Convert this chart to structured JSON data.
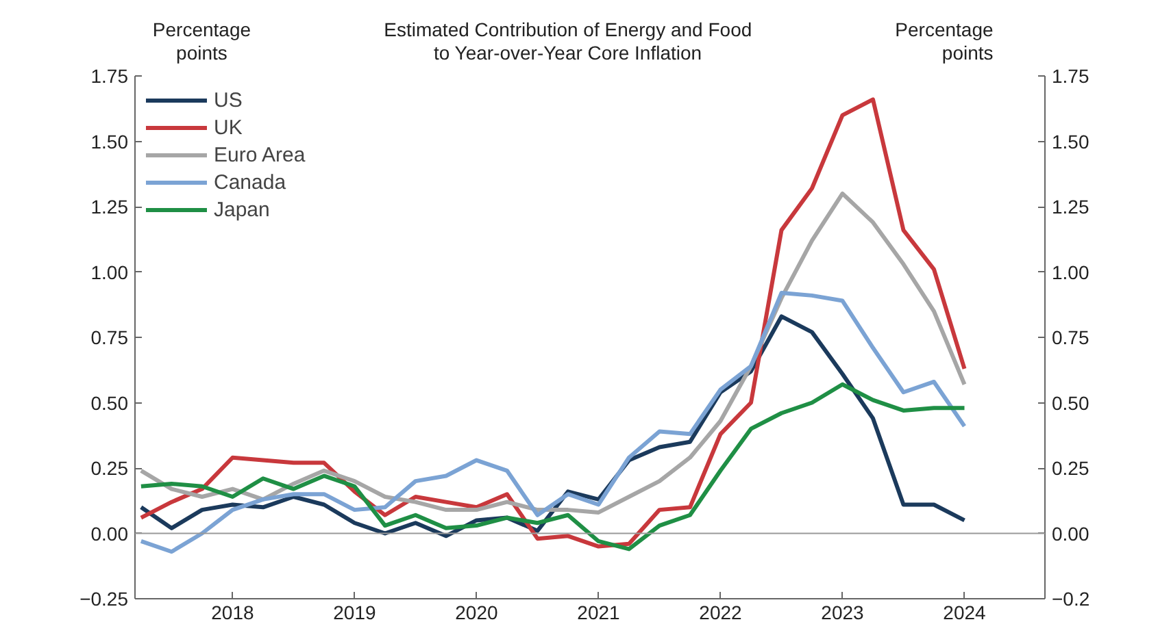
{
  "chart_data": {
    "type": "line",
    "title": "Estimated Contribution of Energy and Food\nto Year-over-Year Core Inflation",
    "ylabel": "Percentage\npoints",
    "y2label": "Percentage\npoints",
    "x": [
      2017.25,
      2017.5,
      2017.75,
      2018.0,
      2018.25,
      2018.5,
      2018.75,
      2019.0,
      2019.25,
      2019.5,
      2019.75,
      2020.0,
      2020.25,
      2020.5,
      2020.75,
      2021.0,
      2021.25,
      2021.5,
      2021.75,
      2022.0,
      2022.25,
      2022.5,
      2022.75,
      2023.0,
      2023.25,
      2023.5,
      2023.75,
      2024.0
    ],
    "series": [
      {
        "name": "US",
        "color": "#1b3a5c",
        "values": [
          0.1,
          0.02,
          0.09,
          0.11,
          0.1,
          0.14,
          0.11,
          0.04,
          0.0,
          0.04,
          -0.01,
          0.05,
          0.06,
          0.01,
          0.16,
          0.13,
          0.28,
          0.33,
          0.35,
          0.54,
          0.62,
          0.83,
          0.77,
          0.61,
          0.44,
          0.11,
          0.11,
          0.05
        ]
      },
      {
        "name": "UK",
        "color": "#c8383c",
        "values": [
          0.06,
          0.12,
          0.17,
          0.29,
          0.28,
          0.27,
          0.27,
          0.16,
          0.07,
          0.14,
          0.12,
          0.1,
          0.15,
          -0.02,
          -0.01,
          -0.05,
          -0.04,
          0.09,
          0.1,
          0.38,
          0.5,
          1.16,
          1.32,
          1.6,
          1.66,
          1.16,
          1.01,
          0.63
        ]
      },
      {
        "name": "Euro Area",
        "color": "#a6a6a6",
        "values": [
          0.24,
          0.17,
          0.14,
          0.17,
          0.13,
          0.19,
          0.24,
          0.2,
          0.14,
          0.12,
          0.09,
          0.09,
          0.12,
          0.09,
          0.09,
          0.08,
          0.14,
          0.2,
          0.29,
          0.43,
          0.64,
          0.9,
          1.12,
          1.3,
          1.19,
          1.03,
          0.85,
          0.57
        ]
      },
      {
        "name": "Canada",
        "color": "#7ba3d4",
        "values": [
          -0.03,
          -0.07,
          0.0,
          0.09,
          0.13,
          0.15,
          0.15,
          0.09,
          0.1,
          0.2,
          0.22,
          0.28,
          0.24,
          0.07,
          0.15,
          0.11,
          0.29,
          0.39,
          0.38,
          0.55,
          0.64,
          0.92,
          0.91,
          0.89,
          0.71,
          0.54,
          0.58,
          0.41
        ]
      },
      {
        "name": "Japan",
        "color": "#1f8f45",
        "values": [
          0.18,
          0.19,
          0.18,
          0.14,
          0.21,
          0.17,
          0.22,
          0.18,
          0.03,
          0.07,
          0.02,
          0.03,
          0.06,
          0.04,
          0.07,
          -0.03,
          -0.06,
          0.03,
          0.07,
          0.24,
          0.4,
          0.46,
          0.5,
          0.57,
          0.51,
          0.47,
          0.48,
          0.48
        ]
      }
    ],
    "xlim": [
      2017.2,
      2024.66
    ],
    "xticks": [
      2018,
      2019,
      2020,
      2021,
      2022,
      2023,
      2024
    ],
    "ylim": [
      -0.25,
      1.75
    ],
    "yticks": [
      {
        "value": -0.25,
        "label": "−0.25"
      },
      {
        "value": 0,
        "label": "0.00"
      },
      {
        "value": 0.25,
        "label": "0.25"
      },
      {
        "value": 0.5,
        "label": "0.50"
      },
      {
        "value": 0.75,
        "label": "0.75"
      },
      {
        "value": 1.0,
        "label": "1.00"
      },
      {
        "value": 1.25,
        "label": "1.25"
      },
      {
        "value": 1.5,
        "label": "1.50"
      },
      {
        "value": 1.75,
        "label": "1.75"
      }
    ],
    "y2lim": [
      -0.25,
      1.75
    ],
    "y2ticks": [
      {
        "value": -0.25,
        "label": "−0.2"
      },
      {
        "value": 0,
        "label": "0.00"
      },
      {
        "value": 0.25,
        "label": "0.25"
      },
      {
        "value": 0.5,
        "label": "0.50"
      },
      {
        "value": 0.75,
        "label": "0.75"
      },
      {
        "value": 1.0,
        "label": "1.00"
      },
      {
        "value": 1.25,
        "label": "1.25"
      },
      {
        "value": 1.5,
        "label": "1.50"
      },
      {
        "value": 1.75,
        "label": "1.75"
      }
    ],
    "ref_lines": [
      {
        "axis": "y",
        "value": 0,
        "color": "#999999"
      }
    ],
    "grid": false,
    "legend": "top left",
    "marker": "none",
    "line_style": "solid"
  }
}
